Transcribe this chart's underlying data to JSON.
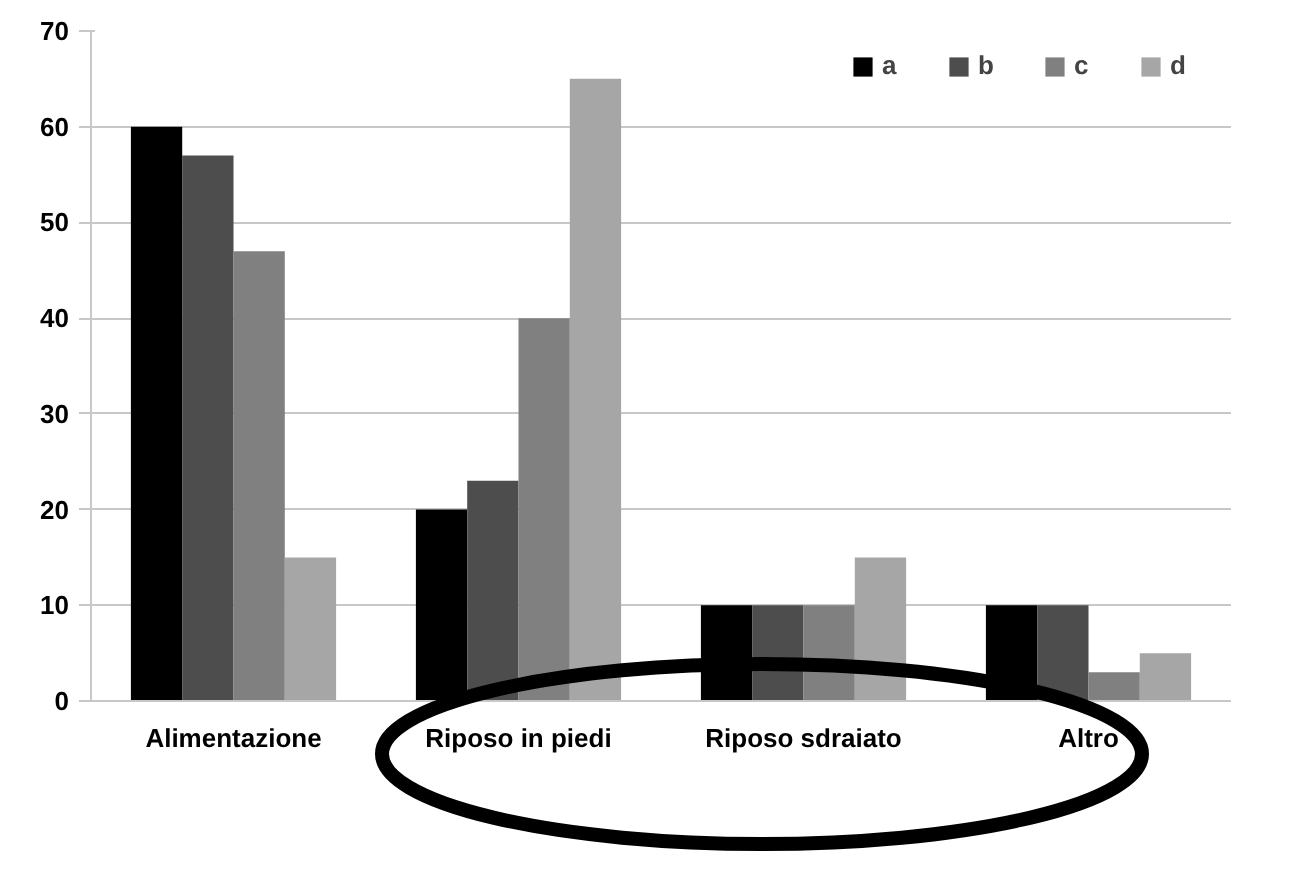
{
  "chart_data": {
    "type": "bar",
    "categories": [
      "Alimentazione",
      "Riposo in piedi",
      "Riposo sdraiato",
      "Altro"
    ],
    "series": [
      {
        "name": "a",
        "color": "#000000",
        "values": [
          60,
          20,
          10,
          10
        ]
      },
      {
        "name": "b",
        "color": "#4d4d4d",
        "values": [
          57,
          23,
          10,
          10
        ]
      },
      {
        "name": "c",
        "color": "#808080",
        "values": [
          47,
          40,
          10,
          3
        ]
      },
      {
        "name": "d",
        "color": "#a6a6a6",
        "values": [
          15,
          65,
          15,
          5
        ]
      }
    ],
    "ylim": [
      0,
      70
    ],
    "yticks": [
      0,
      10,
      20,
      30,
      40,
      50,
      60,
      70
    ],
    "grid": "y",
    "legend": "top right"
  }
}
